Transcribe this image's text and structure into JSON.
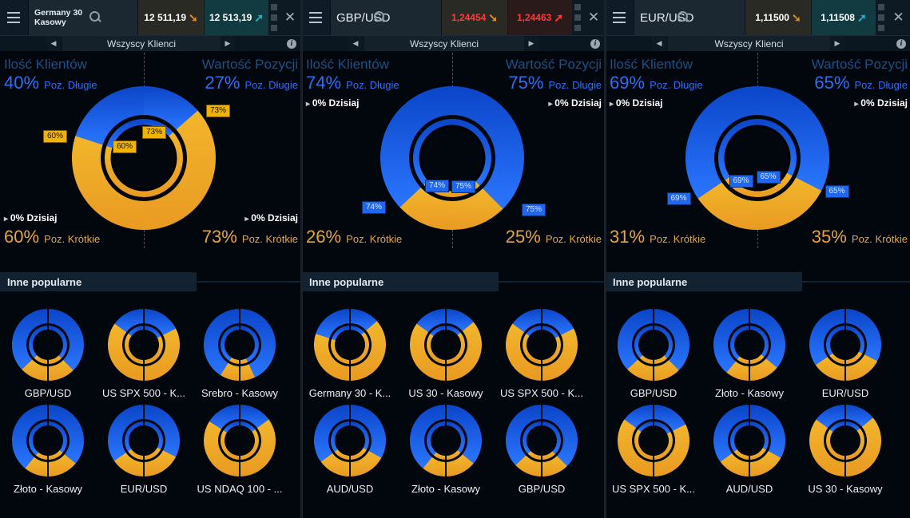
{
  "colors": {
    "long": "#1f5fea",
    "short": "#f3b12d",
    "dark_ring": "#0e1a26",
    "bg": "#02060d"
  },
  "panels": [
    {
      "id": "ger30",
      "instrument": "Germany 30 Kasowy",
      "bid": "12 511,19",
      "bid_dir": "down",
      "ask": "12 513,19",
      "ask_dir": "up",
      "filter": "Wszyscy Klienci",
      "clients_label": "Ilość Klientów",
      "position_label": "Wartość Pozycji",
      "long_clients": "40%",
      "long_positions": "27%",
      "short_clients": "60%",
      "short_positions": "73%",
      "long_suffix": "Poz. Długie",
      "short_suffix": "Poz. Krótkie",
      "today_long_clients": "",
      "today_long_positions": "",
      "today_short_clients": "0% Dzisiaj",
      "today_short_positions": "0% Dzisiaj",
      "dominant": "short",
      "tags": {
        "outer_left": "60%",
        "inner_left": "60%",
        "inner_right": "73%",
        "outer_right": "73%"
      },
      "client_long_frac": 0.4,
      "position_long_frac": 0.27,
      "popular_title": "Inne popularne",
      "popular": [
        {
          "label": "GBP/USD",
          "long": 0.74,
          "pos": 0.75
        },
        {
          "label": "US SPX 500 - K...",
          "long": 0.3,
          "pos": 0.35
        },
        {
          "label": "Srebro - Kasowy",
          "long": 0.82,
          "pos": 0.86
        },
        {
          "label": "Złoto - Kasowy",
          "long": 0.78,
          "pos": 0.72
        },
        {
          "label": "EUR/USD",
          "long": 0.69,
          "pos": 0.65
        },
        {
          "label": "US NDAQ 100 - ...",
          "long": 0.32,
          "pos": 0.3
        }
      ]
    },
    {
      "id": "gbpusd",
      "instrument": "GBP/USD",
      "bid": "1,24454",
      "bid_dir": "down",
      "ask": "1,24463",
      "ask_dir": "up",
      "filter": "Wszyscy Klienci",
      "clients_label": "Ilość Klientów",
      "position_label": "Wartość Pozycji",
      "long_clients": "74%",
      "long_positions": "75%",
      "short_clients": "26%",
      "short_positions": "25%",
      "long_suffix": "Poz. Długie",
      "short_suffix": "Poz. Krótkie",
      "today_long_clients": "0% Dzisiaj",
      "today_long_positions": "0% Dzisiaj",
      "today_short_clients": "",
      "today_short_positions": "",
      "dominant": "long",
      "tags": {
        "outer_left": "74%",
        "inner_left": "74%",
        "inner_right": "75%",
        "outer_right": "75%"
      },
      "client_long_frac": 0.74,
      "position_long_frac": 0.75,
      "popular_title": "Inne popularne",
      "popular": [
        {
          "label": "Germany 30 - K...",
          "long": 0.4,
          "pos": 0.27
        },
        {
          "label": "US 30 - Kasowy",
          "long": 0.3,
          "pos": 0.28
        },
        {
          "label": "US SPX 500 - K...",
          "long": 0.3,
          "pos": 0.35
        },
        {
          "label": "AUD/USD",
          "long": 0.7,
          "pos": 0.66
        },
        {
          "label": "Złoto - Kasowy",
          "long": 0.78,
          "pos": 0.72
        },
        {
          "label": "GBP/USD",
          "long": 0.74,
          "pos": 0.75
        }
      ]
    },
    {
      "id": "eurusd",
      "instrument": "EUR/USD",
      "bid": "1,11500",
      "bid_dir": "down",
      "ask": "1,11508",
      "ask_dir": "up",
      "filter": "Wszyscy Klienci",
      "clients_label": "Ilość Klientów",
      "position_label": "Wartość Pozycji",
      "long_clients": "69%",
      "long_positions": "65%",
      "short_clients": "31%",
      "short_positions": "35%",
      "long_suffix": "Poz. Długie",
      "short_suffix": "Poz. Krótkie",
      "today_long_clients": "0% Dzisiaj",
      "today_long_positions": "0% Dzisiaj",
      "today_short_clients": "",
      "today_short_positions": "",
      "dominant": "long",
      "tags": {
        "outer_left": "69%",
        "inner_left": "69%",
        "inner_right": "65%",
        "outer_right": "65%"
      },
      "client_long_frac": 0.69,
      "position_long_frac": 0.65,
      "popular_title": "Inne popularne",
      "popular": [
        {
          "label": "GBP/USD",
          "long": 0.74,
          "pos": 0.75
        },
        {
          "label": "Złoto - Kasowy",
          "long": 0.78,
          "pos": 0.72
        },
        {
          "label": "EUR/USD",
          "long": 0.69,
          "pos": 0.65
        },
        {
          "label": "US SPX 500 - K...",
          "long": 0.3,
          "pos": 0.35
        },
        {
          "label": "AUD/USD",
          "long": 0.7,
          "pos": 0.66
        },
        {
          "label": "US 30 - Kasowy",
          "long": 0.3,
          "pos": 0.28
        }
      ]
    }
  ]
}
